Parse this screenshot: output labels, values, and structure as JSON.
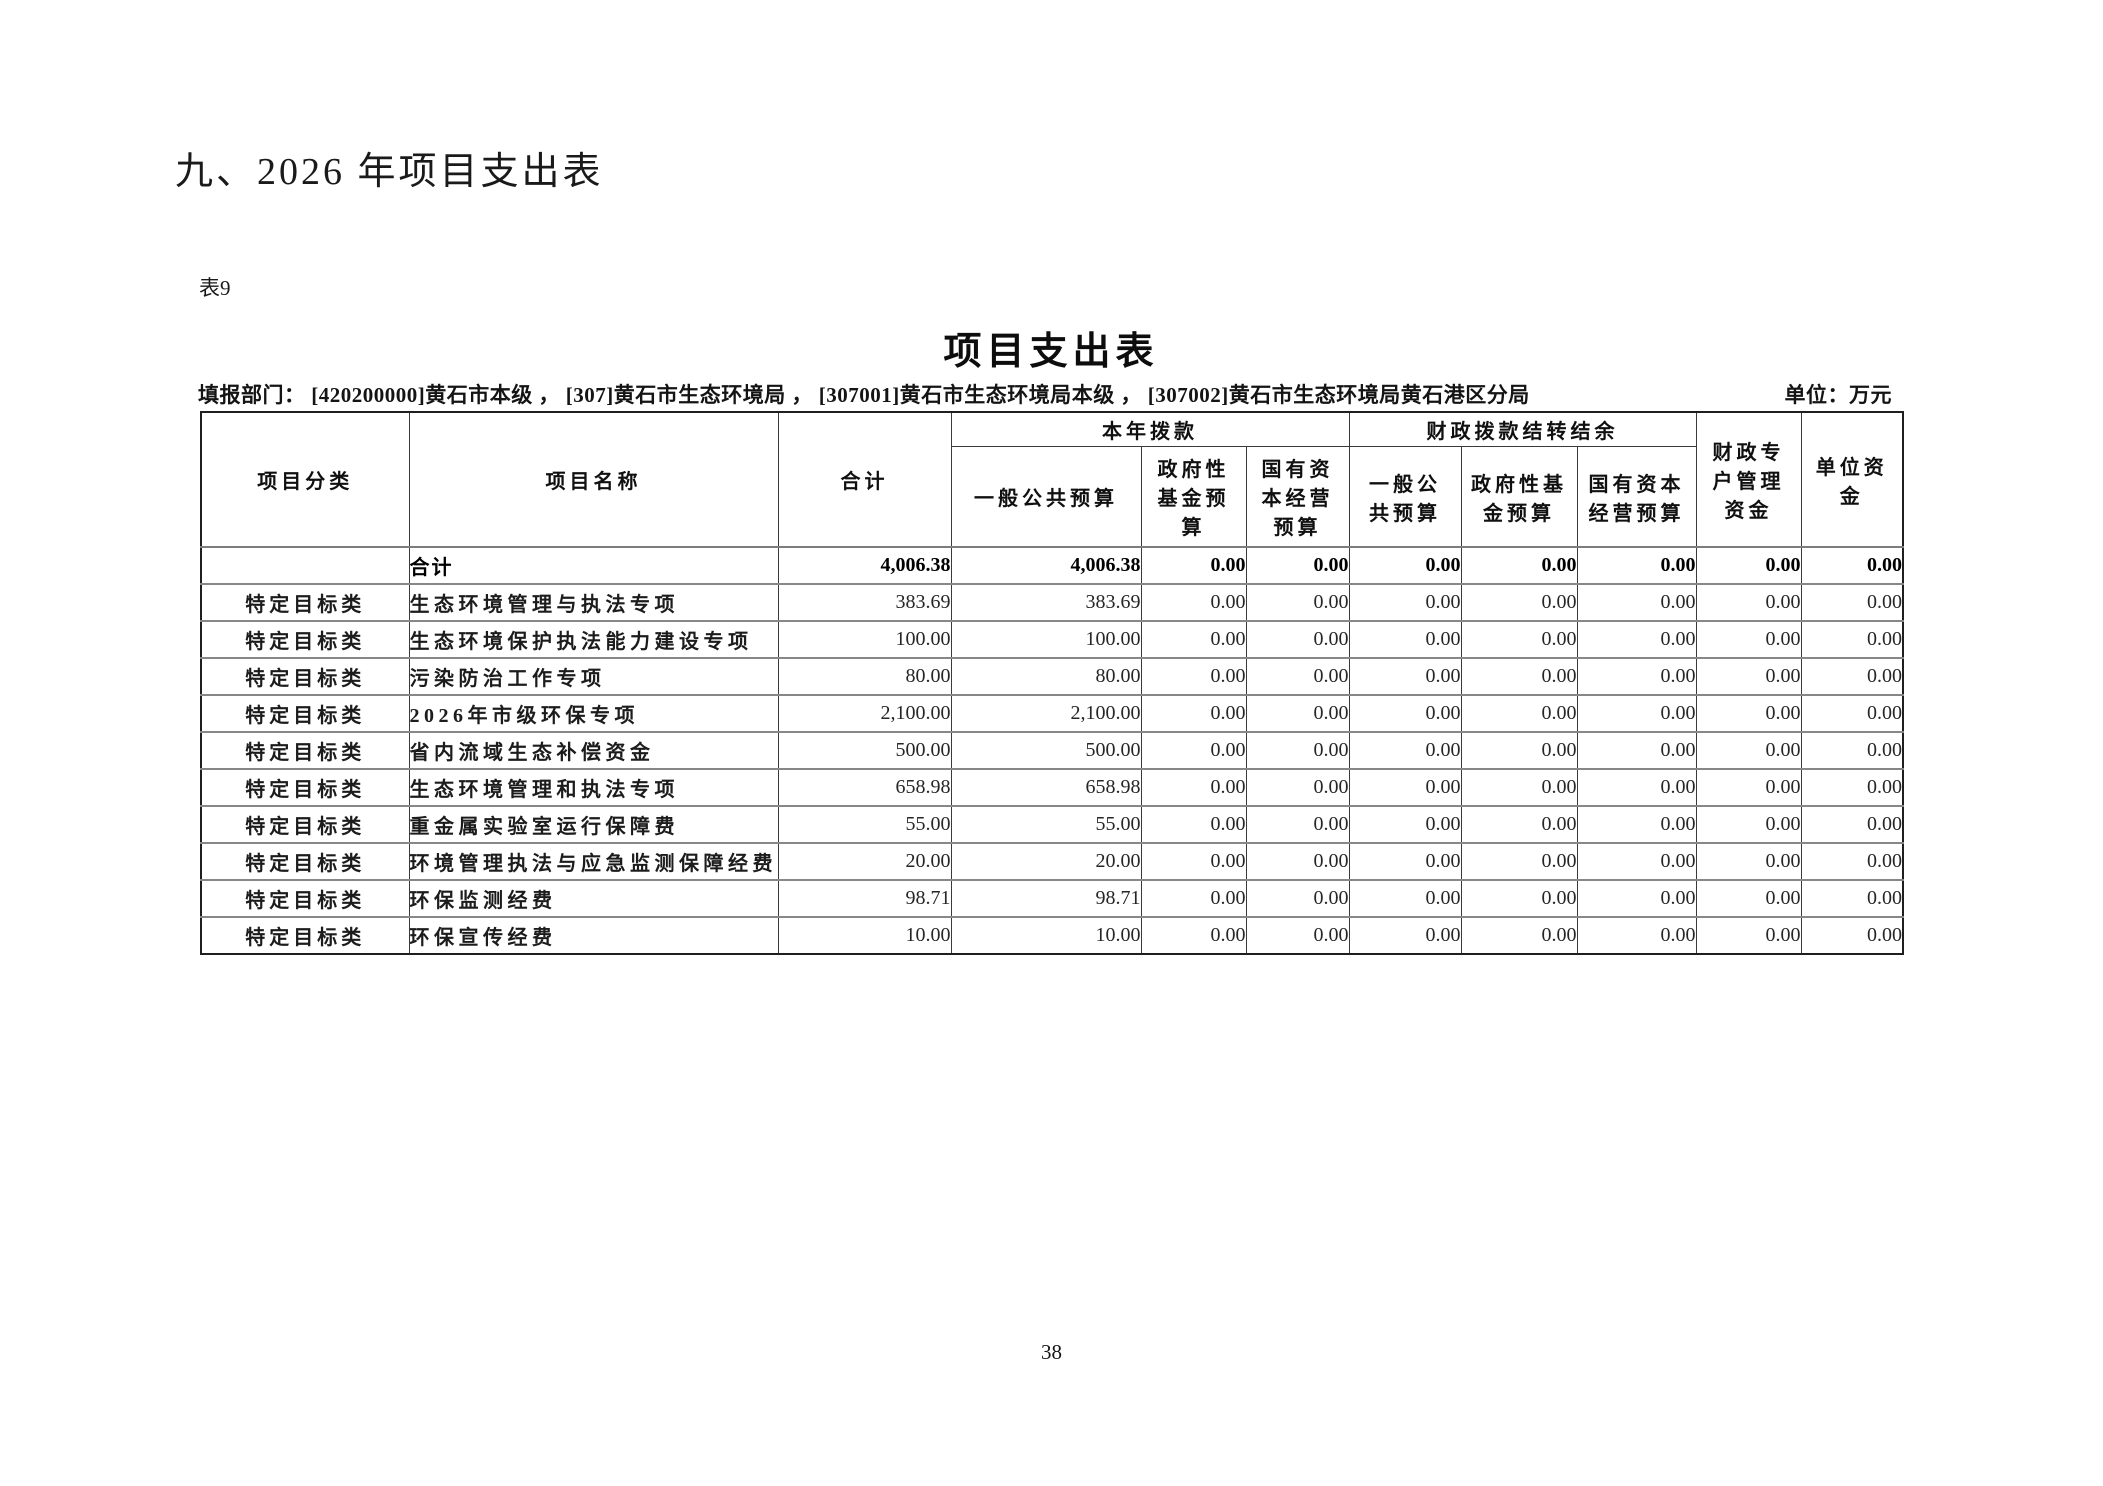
{
  "page": {
    "heading": "九、2026 年项目支出表",
    "table_label": "表9",
    "title": "项目支出表",
    "dept_line": "填报部门： [420200000]黄石市本级 ， [307]黄石市生态环境局 ， [307001]黄石市生态环境局本级 ， [307002]黄石市生态环境局黄石港区分局",
    "unit_label": "单位：万元",
    "page_number": "38"
  },
  "table": {
    "headers": {
      "col_category": "项目分类",
      "col_name": "项目名称",
      "col_total": "合计",
      "group_current_year": "本年拨款",
      "group_carryover": "财政拨款结转结余",
      "cy_general_budget": "一般公共预算",
      "cy_gov_fund": "政府性基金预算",
      "cy_state_capital": "国有资本经营预算",
      "co_general_budget": "一般公共预算",
      "co_gov_fund": "政府性基金预算",
      "co_state_capital": "国有资本经营预算",
      "col_fiscal_account": "财政专户管理资金",
      "col_unit_funds": "单位资金"
    },
    "rows": [
      {
        "is_total": true,
        "category": "",
        "name": "合计",
        "values": [
          "4,006.38",
          "4,006.38",
          "0.00",
          "0.00",
          "0.00",
          "0.00",
          "0.00",
          "0.00",
          "0.00"
        ]
      },
      {
        "is_total": false,
        "category": "特定目标类",
        "name": "生态环境管理与执法专项",
        "values": [
          "383.69",
          "383.69",
          "0.00",
          "0.00",
          "0.00",
          "0.00",
          "0.00",
          "0.00",
          "0.00"
        ]
      },
      {
        "is_total": false,
        "category": "特定目标类",
        "name": "生态环境保护执法能力建设专项",
        "values": [
          "100.00",
          "100.00",
          "0.00",
          "0.00",
          "0.00",
          "0.00",
          "0.00",
          "0.00",
          "0.00"
        ]
      },
      {
        "is_total": false,
        "category": "特定目标类",
        "name": "污染防治工作专项",
        "values": [
          "80.00",
          "80.00",
          "0.00",
          "0.00",
          "0.00",
          "0.00",
          "0.00",
          "0.00",
          "0.00"
        ]
      },
      {
        "is_total": false,
        "category": "特定目标类",
        "name": "2026年市级环保专项",
        "values": [
          "2,100.00",
          "2,100.00",
          "0.00",
          "0.00",
          "0.00",
          "0.00",
          "0.00",
          "0.00",
          "0.00"
        ]
      },
      {
        "is_total": false,
        "category": "特定目标类",
        "name": "省内流域生态补偿资金",
        "values": [
          "500.00",
          "500.00",
          "0.00",
          "0.00",
          "0.00",
          "0.00",
          "0.00",
          "0.00",
          "0.00"
        ]
      },
      {
        "is_total": false,
        "category": "特定目标类",
        "name": "生态环境管理和执法专项",
        "values": [
          "658.98",
          "658.98",
          "0.00",
          "0.00",
          "0.00",
          "0.00",
          "0.00",
          "0.00",
          "0.00"
        ]
      },
      {
        "is_total": false,
        "category": "特定目标类",
        "name": "重金属实验室运行保障费",
        "values": [
          "55.00",
          "55.00",
          "0.00",
          "0.00",
          "0.00",
          "0.00",
          "0.00",
          "0.00",
          "0.00"
        ]
      },
      {
        "is_total": false,
        "category": "特定目标类",
        "name": "环境管理执法与应急监测保障经费",
        "values": [
          "20.00",
          "20.00",
          "0.00",
          "0.00",
          "0.00",
          "0.00",
          "0.00",
          "0.00",
          "0.00"
        ]
      },
      {
        "is_total": false,
        "category": "特定目标类",
        "name": "环保监测经费",
        "values": [
          "98.71",
          "98.71",
          "0.00",
          "0.00",
          "0.00",
          "0.00",
          "0.00",
          "0.00",
          "0.00"
        ]
      },
      {
        "is_total": false,
        "category": "特定目标类",
        "name": "环保宣传经费",
        "values": [
          "10.00",
          "10.00",
          "0.00",
          "0.00",
          "0.00",
          "0.00",
          "0.00",
          "0.00",
          "0.00"
        ]
      }
    ]
  }
}
